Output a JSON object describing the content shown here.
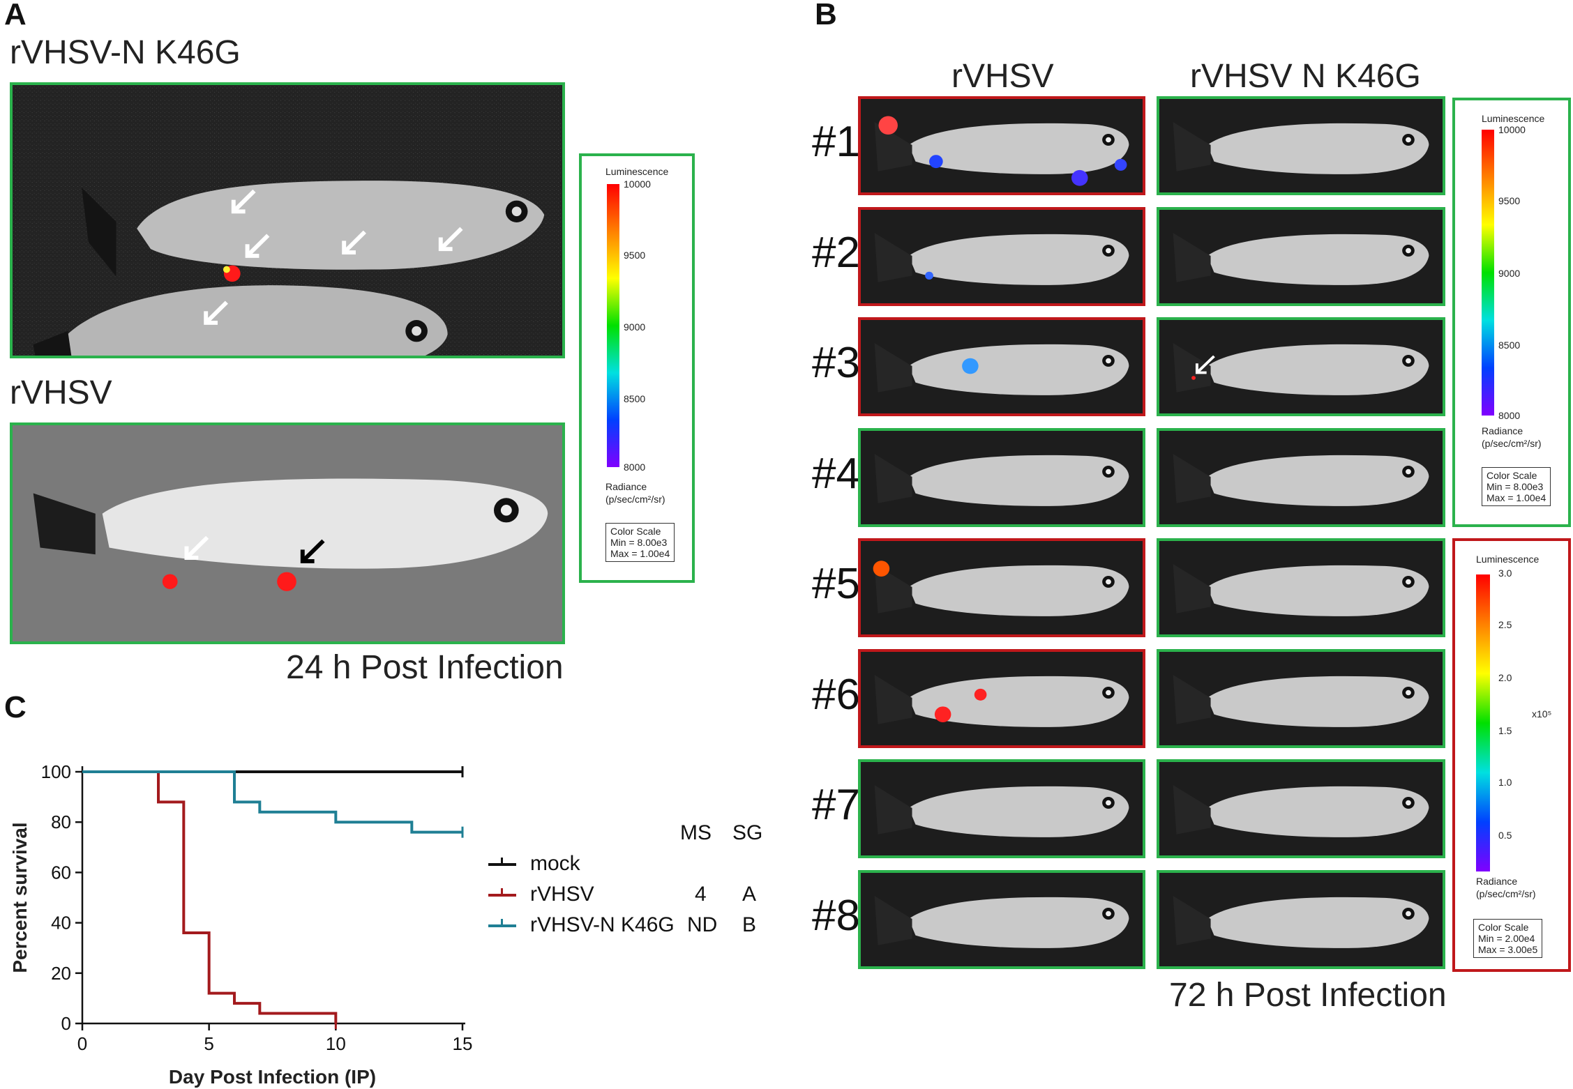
{
  "panelA": {
    "letter": "A",
    "title_top": "rVHSV-N K46G",
    "title_bottom": "rVHSV",
    "caption": "24 h Post Infection",
    "scale": {
      "title": "Luminescence",
      "ticks": [
        "10000",
        "9500",
        "9000",
        "8500",
        "8000"
      ],
      "unit_line1": "Radiance",
      "unit_line2": "(p/sec/cm²/sr)",
      "box_title": "Color Scale",
      "box_min": "Min = 8.00e3",
      "box_max": "Max = 1.00e4"
    }
  },
  "panelB": {
    "letter": "B",
    "col1": "rVHSV",
    "col2": "rVHSV N K46G",
    "rows": [
      "#1",
      "#2",
      "#3",
      "#4",
      "#5",
      "#6",
      "#7",
      "#8"
    ],
    "left_border_colors": [
      "#c0181b",
      "#c0181b",
      "#c0181b",
      "#2bb24c",
      "#c0181b",
      "#c0181b",
      "#2bb24c",
      "#2bb24c"
    ],
    "caption": "72 h Post Infection",
    "scale1": {
      "title": "Luminescence",
      "ticks": [
        "10000",
        "9500",
        "9000",
        "8500",
        "8000"
      ],
      "unit_line1": "Radiance",
      "unit_line2": "(p/sec/cm²/sr)",
      "box_title": "Color Scale",
      "box_min": "Min = 8.00e3",
      "box_max": "Max = 1.00e4"
    },
    "scale2": {
      "title": "Luminescence",
      "ticks": [
        "3.0",
        "2.5",
        "2.0",
        "1.5",
        "1.0",
        "0.5"
      ],
      "multiplier": "x10⁵",
      "unit_line1": "Radiance",
      "unit_line2": "(p/sec/cm²/sr)",
      "box_title": "Color Scale",
      "box_min": "Min = 2.00e4",
      "box_max": "Max = 3.00e5"
    }
  },
  "panelC": {
    "letter": "C",
    "legend_headers": {
      "ms": "MS",
      "sg": "SG"
    },
    "legend": [
      {
        "name": "mock",
        "ms": "",
        "sg": ""
      },
      {
        "name": "rVHSV",
        "ms": "4",
        "sg": "A"
      },
      {
        "name": "rVHSV-N K46G",
        "ms": "ND",
        "sg": "B"
      }
    ]
  },
  "chart_data": {
    "type": "line",
    "subtype": "kaplan-meier step",
    "title": "",
    "xlabel": "Day Post Infection (IP)",
    "ylabel": "Percent survival",
    "xlim": [
      0,
      15
    ],
    "ylim": [
      0,
      100
    ],
    "xticks": [
      0,
      5,
      10,
      15
    ],
    "yticks": [
      0,
      20,
      40,
      60,
      80,
      100
    ],
    "series": [
      {
        "name": "mock",
        "color": "#111111",
        "x": [
          0,
          15
        ],
        "y": [
          100,
          100
        ]
      },
      {
        "name": "rVHSV",
        "color": "#a31a1d",
        "x": [
          0,
          3,
          4,
          5,
          6,
          7,
          10
        ],
        "y": [
          100,
          88,
          36,
          12,
          8,
          4,
          0
        ]
      },
      {
        "name": "rVHSV-N K46G",
        "color": "#1f7f94",
        "x": [
          0,
          6,
          7,
          10,
          13,
          15
        ],
        "y": [
          100,
          88,
          84,
          80,
          76,
          76
        ]
      }
    ]
  }
}
